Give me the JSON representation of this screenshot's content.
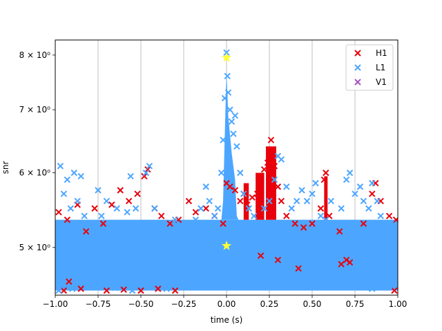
{
  "chart_data": {
    "type": "scatter",
    "title": "",
    "xlabel": "time (s)",
    "ylabel": "snr",
    "xlim": [
      -1.0,
      1.0
    ],
    "ylim": [
      4.45,
      8.3
    ],
    "y_scale": "log",
    "grid": "vertical-major",
    "legend_position": "upper right",
    "x_ticks": [
      -1.0,
      -0.75,
      -0.5,
      -0.25,
      0.0,
      0.25,
      0.5,
      0.75,
      1.0
    ],
    "x_tick_labels": [
      "−1.00",
      "−0.75",
      "−0.50",
      "−0.25",
      "0.00",
      "0.25",
      "0.50",
      "0.75",
      "1.00"
    ],
    "y_ticks": [
      5,
      6,
      7,
      8
    ],
    "y_tick_labels": [
      "5 × 10⁰",
      "6 × 10⁰",
      "7 × 10⁰",
      "8 × 10⁰"
    ],
    "series": [
      {
        "name": "H1",
        "color": "#e8000b",
        "marker": "x",
        "points": [
          [
            -0.98,
            5.45
          ],
          [
            -0.93,
            5.35
          ],
          [
            -0.87,
            5.55
          ],
          [
            -0.82,
            5.2
          ],
          [
            -0.77,
            5.5
          ],
          [
            -0.72,
            5.3
          ],
          [
            -0.67,
            5.55
          ],
          [
            -0.62,
            5.75
          ],
          [
            -0.57,
            5.6
          ],
          [
            -0.52,
            5.7
          ],
          [
            -0.48,
            5.95
          ],
          [
            -0.46,
            6.05
          ],
          [
            -0.42,
            5.5
          ],
          [
            -0.38,
            5.4
          ],
          [
            -0.33,
            5.3
          ],
          [
            -0.28,
            5.35
          ],
          [
            -0.22,
            5.6
          ],
          [
            -0.18,
            5.45
          ],
          [
            -0.12,
            5.5
          ],
          [
            -0.07,
            5.4
          ],
          [
            -0.02,
            5.3
          ],
          [
            0.0,
            5.85
          ],
          [
            0.02,
            5.8
          ],
          [
            0.05,
            5.75
          ],
          [
            0.08,
            5.6
          ],
          [
            0.1,
            5.7
          ],
          [
            0.12,
            5.55
          ],
          [
            0.15,
            5.65
          ],
          [
            0.18,
            5.7
          ],
          [
            0.2,
            5.9
          ],
          [
            0.22,
            6.05
          ],
          [
            0.24,
            6.15
          ],
          [
            0.25,
            6.3
          ],
          [
            0.26,
            6.5
          ],
          [
            0.27,
            6.35
          ],
          [
            0.28,
            6.1
          ],
          [
            0.3,
            5.8
          ],
          [
            0.32,
            5.6
          ],
          [
            0.35,
            5.4
          ],
          [
            0.4,
            5.3
          ],
          [
            0.45,
            5.25
          ],
          [
            0.5,
            5.3
          ],
          [
            0.55,
            5.5
          ],
          [
            0.57,
            5.9
          ],
          [
            0.58,
            6.0
          ],
          [
            0.6,
            5.4
          ],
          [
            0.66,
            5.2
          ],
          [
            0.7,
            4.85
          ],
          [
            0.72,
            4.82
          ],
          [
            0.8,
            5.3
          ],
          [
            0.85,
            5.7
          ],
          [
            0.87,
            5.85
          ],
          [
            0.9,
            5.6
          ],
          [
            0.95,
            5.4
          ],
          [
            0.99,
            5.35
          ],
          [
            -0.95,
            4.5
          ],
          [
            -0.85,
            4.52
          ],
          [
            -0.7,
            4.5
          ],
          [
            -0.6,
            4.51
          ],
          [
            -0.5,
            4.5
          ],
          [
            -0.4,
            4.52
          ],
          [
            -0.3,
            4.5
          ],
          [
            0.3,
            4.85
          ],
          [
            0.42,
            4.75
          ],
          [
            0.67,
            4.8
          ],
          [
            0.98,
            4.5
          ],
          [
            -0.92,
            4.6
          ],
          [
            0.2,
            4.9
          ]
        ]
      },
      {
        "name": "L1",
        "color": "#4ca6ff",
        "marker": "x",
        "points": [
          [
            -0.99,
            5.1
          ],
          [
            -0.97,
            6.1
          ],
          [
            -0.95,
            5.7
          ],
          [
            -0.93,
            5.9
          ],
          [
            -0.91,
            5.5
          ],
          [
            -0.89,
            6.0
          ],
          [
            -0.87,
            5.6
          ],
          [
            -0.85,
            5.95
          ],
          [
            -0.83,
            5.4
          ],
          [
            -0.81,
            5.3
          ],
          [
            -0.78,
            5.2
          ],
          [
            -0.75,
            5.75
          ],
          [
            -0.73,
            5.4
          ],
          [
            -0.7,
            5.6
          ],
          [
            -0.67,
            5.3
          ],
          [
            -0.64,
            5.5
          ],
          [
            -0.61,
            5.2
          ],
          [
            -0.58,
            5.45
          ],
          [
            -0.56,
            5.95
          ],
          [
            -0.53,
            5.5
          ],
          [
            -0.5,
            5.3
          ],
          [
            -0.47,
            6.0
          ],
          [
            -0.45,
            6.1
          ],
          [
            -0.42,
            5.5
          ],
          [
            -0.39,
            5.3
          ],
          [
            -0.36,
            5.2
          ],
          [
            -0.33,
            5.15
          ],
          [
            -0.3,
            5.35
          ],
          [
            -0.27,
            5.2
          ],
          [
            -0.24,
            5.3
          ],
          [
            -0.21,
            5.25
          ],
          [
            -0.18,
            5.35
          ],
          [
            -0.15,
            5.5
          ],
          [
            -0.12,
            5.8
          ],
          [
            -0.1,
            5.6
          ],
          [
            -0.07,
            5.4
          ],
          [
            -0.05,
            5.5
          ],
          [
            -0.03,
            6.0
          ],
          [
            -0.02,
            6.5
          ],
          [
            -0.01,
            7.2
          ],
          [
            0.0,
            8.05
          ],
          [
            0.005,
            7.6
          ],
          [
            0.01,
            7.3
          ],
          [
            0.02,
            7.0
          ],
          [
            0.03,
            6.8
          ],
          [
            0.04,
            6.6
          ],
          [
            0.05,
            6.9
          ],
          [
            0.06,
            6.4
          ],
          [
            0.08,
            6.0
          ],
          [
            0.1,
            5.7
          ],
          [
            0.13,
            5.5
          ],
          [
            0.16,
            5.4
          ],
          [
            0.19,
            5.3
          ],
          [
            0.22,
            5.5
          ],
          [
            0.25,
            5.6
          ],
          [
            0.28,
            5.9
          ],
          [
            0.3,
            6.25
          ],
          [
            0.32,
            6.2
          ],
          [
            0.35,
            5.8
          ],
          [
            0.38,
            5.5
          ],
          [
            0.41,
            5.6
          ],
          [
            0.44,
            5.75
          ],
          [
            0.47,
            5.6
          ],
          [
            0.5,
            5.7
          ],
          [
            0.52,
            5.85
          ],
          [
            0.55,
            5.4
          ],
          [
            0.58,
            5.35
          ],
          [
            0.61,
            5.6
          ],
          [
            0.64,
            5.3
          ],
          [
            0.67,
            5.5
          ],
          [
            0.7,
            5.9
          ],
          [
            0.72,
            6.0
          ],
          [
            0.75,
            5.7
          ],
          [
            0.78,
            5.8
          ],
          [
            0.8,
            5.6
          ],
          [
            0.83,
            5.5
          ],
          [
            0.85,
            5.85
          ],
          [
            0.88,
            5.6
          ],
          [
            0.9,
            5.4
          ],
          [
            0.93,
            5.2
          ],
          [
            0.96,
            5.3
          ],
          [
            0.99,
            5.2
          ],
          [
            -0.98,
            4.5
          ],
          [
            -0.9,
            4.52
          ],
          [
            -0.8,
            4.55
          ],
          [
            -0.65,
            4.53
          ],
          [
            -0.55,
            4.5
          ],
          [
            -0.45,
            4.54
          ],
          [
            -0.35,
            4.52
          ],
          [
            -0.25,
            4.55
          ],
          [
            -0.15,
            4.58
          ],
          [
            -0.05,
            4.6
          ],
          [
            0.05,
            4.62
          ],
          [
            0.15,
            4.58
          ],
          [
            0.25,
            4.6
          ],
          [
            0.35,
            4.55
          ],
          [
            0.45,
            4.6
          ],
          [
            0.55,
            4.58
          ],
          [
            0.65,
            4.6
          ],
          [
            0.75,
            4.55
          ],
          [
            0.85,
            4.52
          ],
          [
            0.95,
            4.55
          ]
        ]
      },
      {
        "name": "V1",
        "color": "#a353c8",
        "marker": "x",
        "points": []
      }
    ],
    "highlights": [
      {
        "x": 0.0,
        "y": 7.95,
        "marker": "star",
        "color": "#ffff33"
      },
      {
        "x": 0.0,
        "y": 5.02,
        "marker": "star",
        "color": "#ffff33"
      }
    ]
  }
}
